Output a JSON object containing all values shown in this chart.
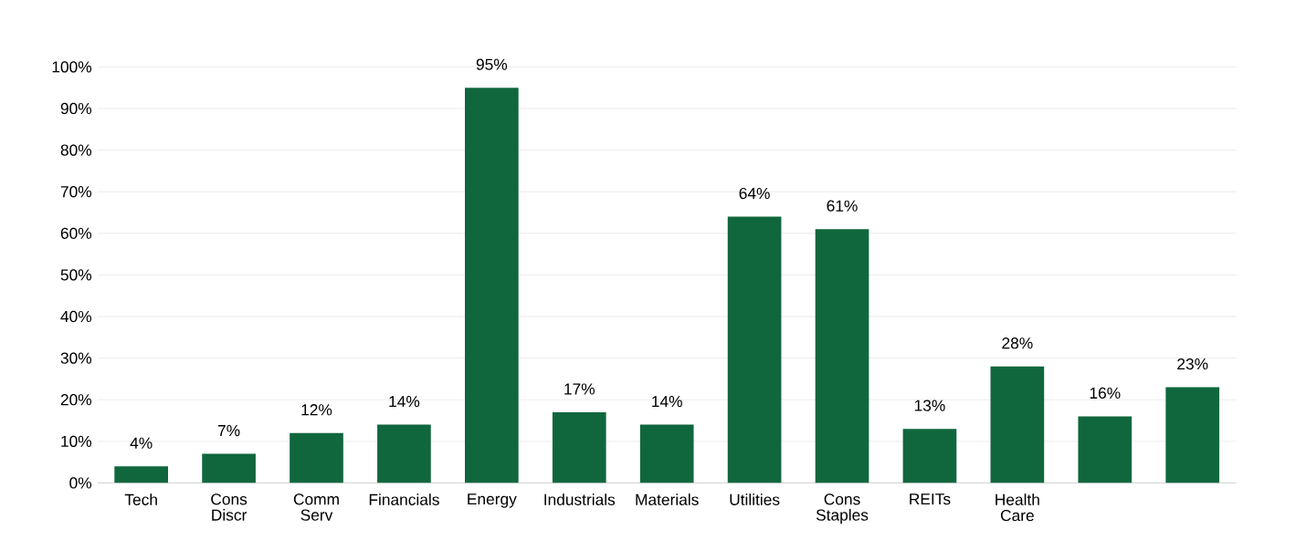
{
  "chart_data": {
    "type": "bar",
    "categories": [
      "Tech",
      "Cons Discr",
      "Comm Serv",
      "Financials",
      "Energy",
      "Industrials",
      "Materials",
      "Utilities",
      "Cons Staples",
      "REITs",
      "Health Care",
      null,
      null
    ],
    "values": [
      4,
      7,
      12,
      14,
      95,
      17,
      14,
      64,
      61,
      13,
      28,
      16,
      23
    ],
    "value_labels": [
      "4%",
      "7%",
      "12%",
      "14%",
      "95%",
      "17%",
      "14%",
      "64%",
      "61%",
      "13%",
      "28%",
      "16%",
      "23%"
    ],
    "color": "#10673d",
    "ylim": [
      0,
      100
    ],
    "yticks": [
      {
        "value": 0,
        "label": "0%"
      },
      {
        "value": 10,
        "label": "10%"
      },
      {
        "value": 20,
        "label": "20%"
      },
      {
        "value": 30,
        "label": "30%"
      },
      {
        "value": 40,
        "label": "40%"
      },
      {
        "value": 50,
        "label": "50%"
      },
      {
        "value": 60,
        "label": "60%"
      },
      {
        "value": 70,
        "label": "70%"
      },
      {
        "value": 80,
        "label": "80%"
      },
      {
        "value": 90,
        "label": "90%"
      },
      {
        "value": 100,
        "label": "100%"
      }
    ],
    "grid": "y"
  }
}
